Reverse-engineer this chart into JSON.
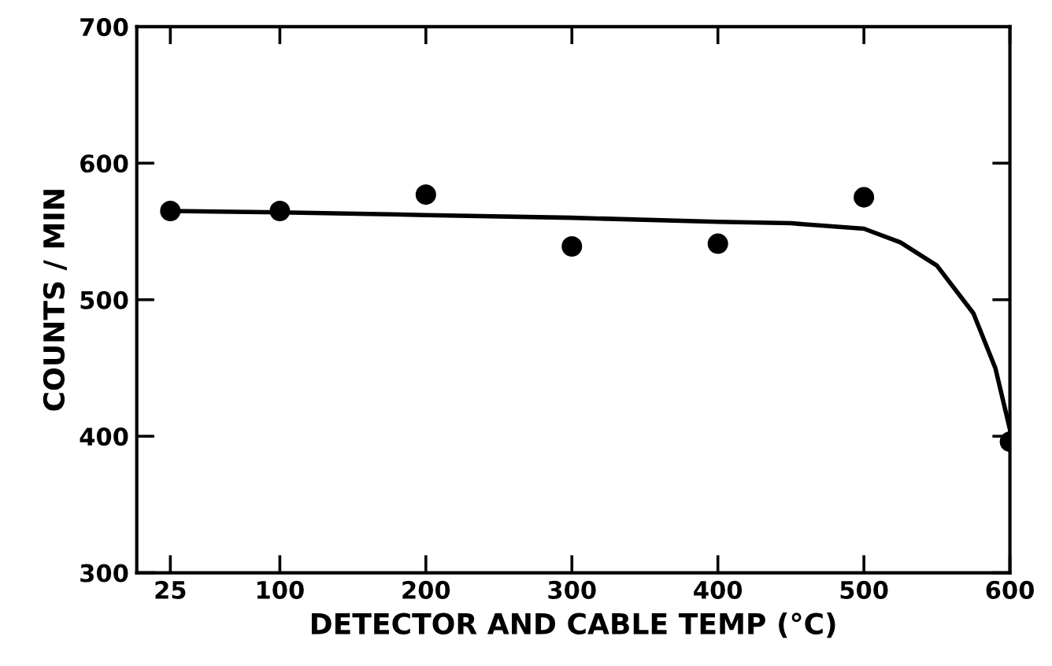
{
  "chart_data": {
    "type": "scatter",
    "xlabel": "DETECTOR AND CABLE TEMP (°C)",
    "ylabel": "COUNTS / MIN",
    "xlim": [
      2,
      600
    ],
    "xticks": [
      25,
      100,
      200,
      300,
      400,
      500,
      600
    ],
    "ylim": [
      300,
      700
    ],
    "yticks": [
      300,
      400,
      500,
      600,
      700
    ],
    "grid": false,
    "marker": "circle",
    "series": [
      {
        "color": "#000000",
        "x": [
          25,
          100,
          200,
          300,
          400,
          500,
          600
        ],
        "values": [
          565,
          565,
          577,
          539,
          541,
          575,
          396
        ]
      },
      {
        "type": "line",
        "color": "#000000",
        "line_style": "solid",
        "marker": "none",
        "x": [
          25,
          100,
          200,
          300,
          400,
          450,
          500,
          525,
          550,
          575,
          590,
          600
        ],
        "values": [
          565,
          564,
          562,
          560,
          557,
          556,
          552,
          542,
          525,
          490,
          450,
          405
        ]
      }
    ]
  }
}
